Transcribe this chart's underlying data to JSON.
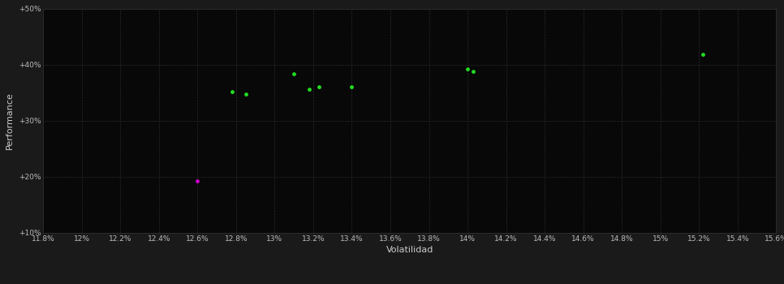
{
  "background_color": "#1a1a1a",
  "plot_bg_color": "#080808",
  "grid_color": "#2a2a2a",
  "xlabel": "Volatilidad",
  "ylabel": "Performance",
  "xlim": [
    0.118,
    0.156
  ],
  "ylim": [
    0.1,
    0.5
  ],
  "xtick_values": [
    0.118,
    0.12,
    0.122,
    0.124,
    0.126,
    0.128,
    0.13,
    0.132,
    0.134,
    0.136,
    0.138,
    0.14,
    0.142,
    0.144,
    0.146,
    0.148,
    0.15,
    0.152,
    0.154,
    0.156
  ],
  "xtick_labels": [
    "11.8%",
    "12%",
    "12.2%",
    "12.4%",
    "12.6%",
    "12.8%",
    "13%",
    "13.2%",
    "13.4%",
    "13.6%",
    "13.8%",
    "14%",
    "14.2%",
    "14.4%",
    "14.6%",
    "14.8%",
    "15%",
    "15.2%",
    "15.4%",
    "15.6%"
  ],
  "yticks": [
    0.1,
    0.2,
    0.3,
    0.4,
    0.5
  ],
  "ytick_labels": [
    "+10%",
    "+20%",
    "+30%",
    "+40%",
    "+50%"
  ],
  "green_points": [
    [
      0.1278,
      0.352
    ],
    [
      0.1285,
      0.347
    ],
    [
      0.131,
      0.384
    ],
    [
      0.1318,
      0.356
    ],
    [
      0.1323,
      0.36
    ],
    [
      0.134,
      0.36
    ],
    [
      0.14,
      0.392
    ],
    [
      0.1403,
      0.388
    ],
    [
      0.1522,
      0.418
    ]
  ],
  "magenta_points": [
    [
      0.126,
      0.193
    ]
  ],
  "point_size": 12,
  "tick_fontsize": 6.5,
  "label_fontsize": 8,
  "tick_color": "#bbbbbb",
  "label_color": "#cccccc",
  "spine_color": "#333333"
}
